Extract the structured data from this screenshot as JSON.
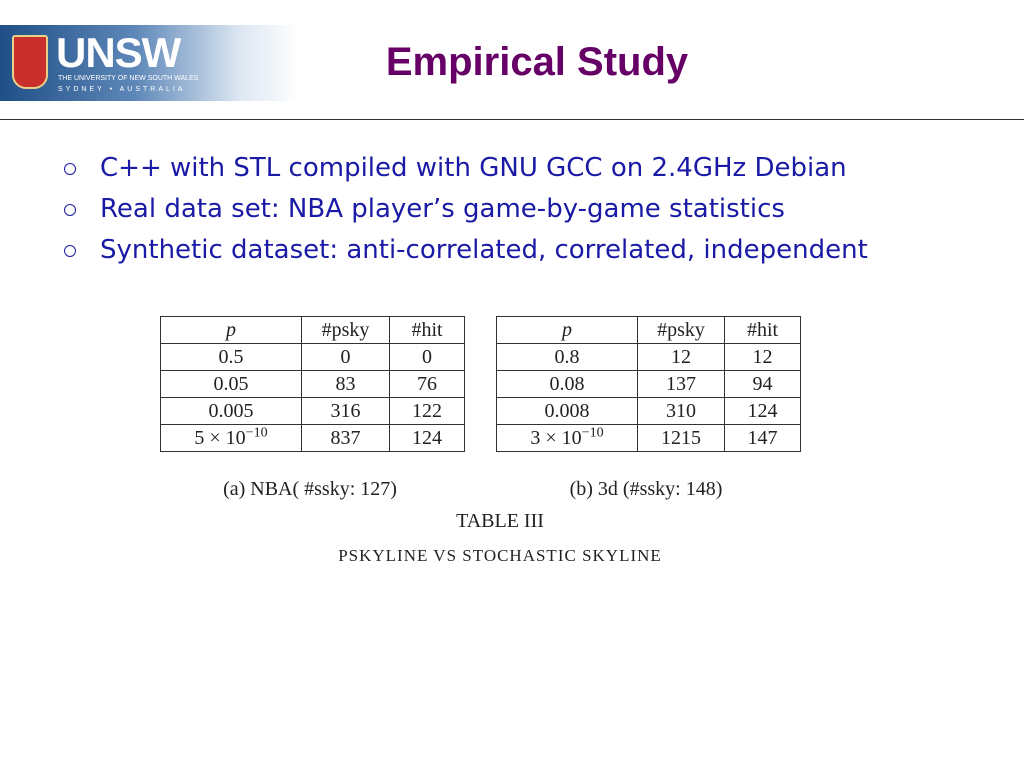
{
  "header": {
    "logo": {
      "wordmark": "UNSW",
      "university": "THE UNIVERSITY OF NEW SOUTH WALES",
      "location": "SYDNEY • AUSTRALIA"
    },
    "title": "Empirical Study"
  },
  "bullets": [
    "C++ with STL compiled with GNU GCC on 2.4GHz Debian",
    "Real data set: NBA player’s game-by-game statistics",
    "Synthetic dataset: anti-correlated, correlated, independent"
  ],
  "tables": [
    {
      "header": [
        "p",
        "#psky",
        "#hit"
      ],
      "rows": [
        [
          "0.5",
          "0",
          "0"
        ],
        [
          "0.05",
          "83",
          "76"
        ],
        [
          "0.005",
          "316",
          "122"
        ],
        [
          {
            "base": "5 × 10",
            "exponent": "−10"
          },
          "837",
          "124"
        ]
      ],
      "caption": "(a) NBA( #ssky: 127)"
    },
    {
      "header": [
        "p",
        "#psky",
        "#hit"
      ],
      "rows": [
        [
          "0.8",
          "12",
          "12"
        ],
        [
          "0.08",
          "137",
          "94"
        ],
        [
          "0.008",
          "310",
          "124"
        ],
        [
          {
            "base": "3 × 10",
            "exponent": "−10"
          },
          "1215",
          "147"
        ]
      ],
      "caption": "(b) 3d (#ssky: 148)"
    }
  ],
  "table_label": "TABLE III",
  "table_title": "PSKYLINE VS STOCHASTIC SKYLINE"
}
